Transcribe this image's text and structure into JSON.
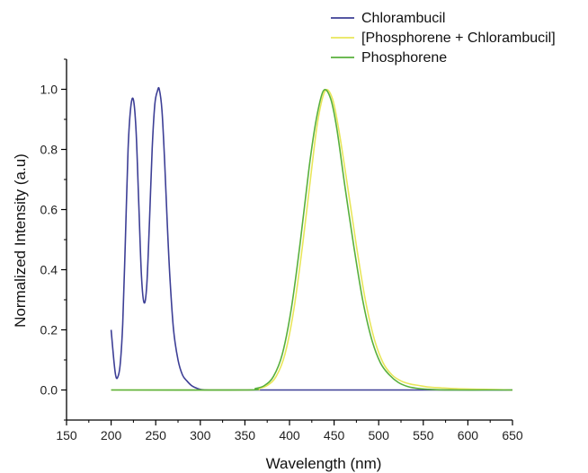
{
  "chart_data": {
    "type": "line",
    "title": "",
    "xlabel": "Wavelength (nm)",
    "ylabel": "Normalized Intensity (a.u)",
    "xlim": [
      150,
      650
    ],
    "ylim": [
      -0.1,
      1.1
    ],
    "xticks": [
      "150",
      "200",
      "250",
      "300",
      "350",
      "400",
      "450",
      "500",
      "550",
      "600",
      "650"
    ],
    "yticks": [
      "0.0",
      "0.2",
      "0.4",
      "0.6",
      "0.8",
      "1.0"
    ],
    "grid": false,
    "legend_position": "top-right",
    "series": [
      {
        "name": "Chlorambucil",
        "color": "#3d3f96",
        "x": [
          200,
          203,
          205,
          207,
          210,
          213,
          216,
          219,
          222,
          225,
          228,
          231,
          234,
          237,
          240,
          243,
          246,
          249,
          252,
          254,
          257,
          260,
          263,
          266,
          270,
          275,
          280,
          285,
          290,
          295,
          300,
          310,
          350,
          400,
          450,
          500,
          550,
          600,
          650
        ],
        "y": [
          0.2,
          0.1,
          0.05,
          0.04,
          0.08,
          0.22,
          0.5,
          0.8,
          0.94,
          0.965,
          0.86,
          0.62,
          0.38,
          0.29,
          0.35,
          0.56,
          0.8,
          0.95,
          0.995,
          1.0,
          0.93,
          0.76,
          0.55,
          0.37,
          0.2,
          0.1,
          0.05,
          0.03,
          0.015,
          0.007,
          0.002,
          0.0,
          0.0,
          0.0,
          0.0,
          0.0,
          0.0,
          0.0,
          0.0
        ]
      },
      {
        "name": "[Phosphorene + Chlorambucil]",
        "color": "#e8e65a",
        "x": [
          200,
          350,
          365,
          375,
          385,
          395,
          405,
          415,
          425,
          432,
          440,
          448,
          455,
          465,
          475,
          485,
          495,
          505,
          515,
          525,
          535,
          545,
          555,
          570,
          590,
          620,
          650
        ],
        "y": [
          0.0,
          0.0,
          0.005,
          0.015,
          0.045,
          0.12,
          0.27,
          0.49,
          0.74,
          0.9,
          0.995,
          0.97,
          0.87,
          0.68,
          0.48,
          0.3,
          0.17,
          0.09,
          0.05,
          0.03,
          0.02,
          0.015,
          0.01,
          0.007,
          0.004,
          0.002,
          0.0
        ]
      },
      {
        "name": "Phosphorene",
        "color": "#58b03c",
        "x": [
          200,
          350,
          362,
          372,
          382,
          392,
          402,
          412,
          422,
          430,
          438,
          446,
          453,
          462,
          472,
          482,
          492,
          502,
          512,
          522,
          532,
          542,
          552,
          565,
          585,
          620,
          650
        ],
        "y": [
          0.0,
          0.0,
          0.005,
          0.015,
          0.045,
          0.12,
          0.27,
          0.49,
          0.74,
          0.9,
          0.995,
          0.97,
          0.87,
          0.68,
          0.48,
          0.3,
          0.17,
          0.09,
          0.05,
          0.025,
          0.012,
          0.006,
          0.003,
          0.001,
          0.0,
          0.0,
          0.0
        ]
      }
    ]
  }
}
